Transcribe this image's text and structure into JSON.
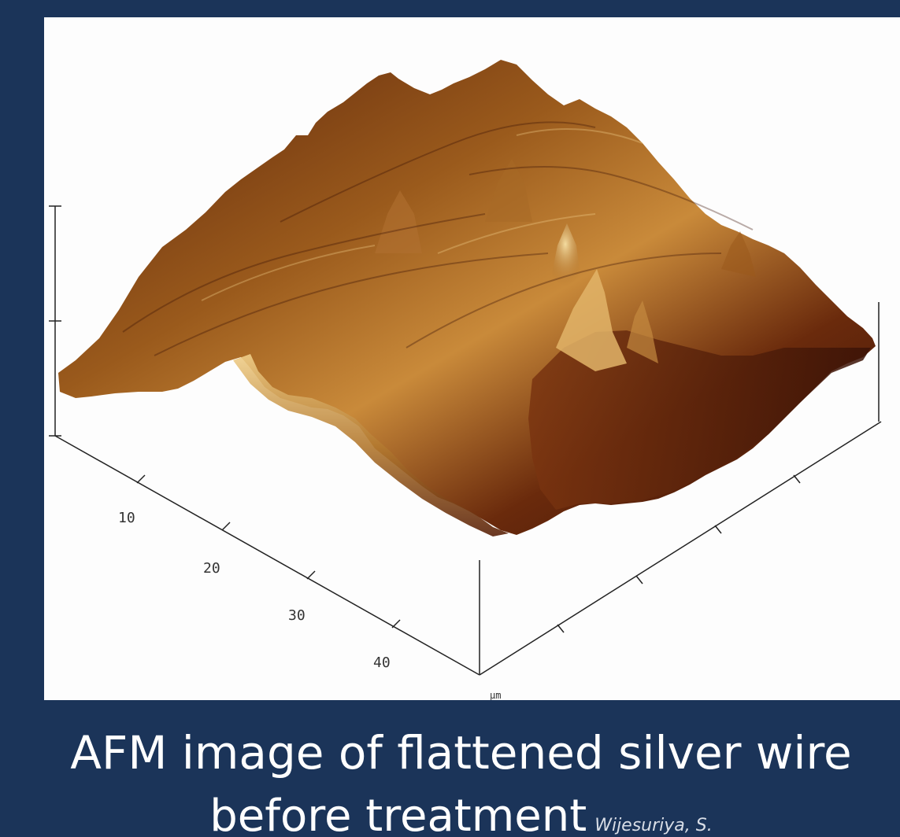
{
  "figure": {
    "x_axis_ticks": [
      "10",
      "20",
      "30",
      "40"
    ],
    "unit_label": "µm",
    "colors": {
      "frame": "#1b3459",
      "surface_dark": "#3a1206",
      "surface_mid": "#8a4a14",
      "surface_light": "#e9c27a",
      "background": "#fdfdfd"
    }
  },
  "caption": {
    "line1": "AFM image of flattened silver wire",
    "line2": "before treatment",
    "credit": "Wijesuriya, S."
  }
}
